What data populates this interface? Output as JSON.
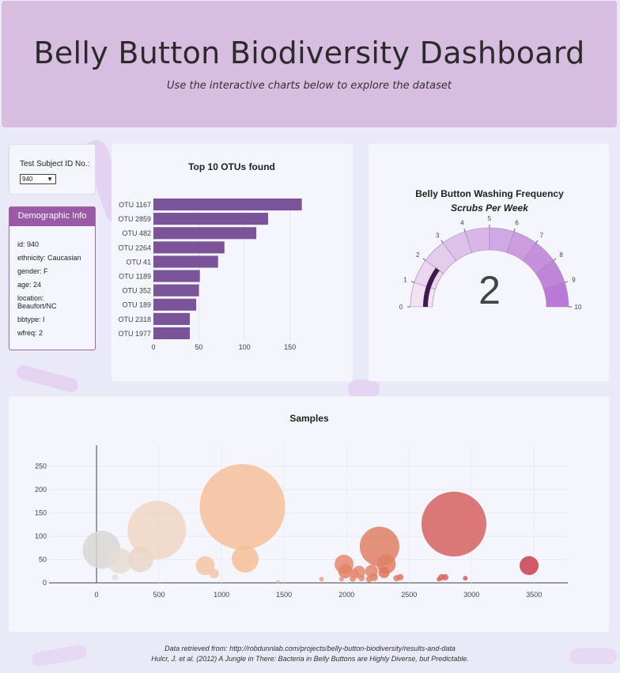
{
  "header": {
    "title": "Belly Button Biodiversity Dashboard",
    "subtitle": "Use the interactive charts below to explore the dataset"
  },
  "selector": {
    "label": "Test Subject ID No.:",
    "value": "940"
  },
  "demographics": {
    "title": "Demographic Info",
    "items": [
      "id: 940",
      "ethnicity: Caucasian",
      "gender: F",
      "age: 24",
      "location: Beaufort/NC",
      "bbtype: I",
      "wfreq: 2"
    ]
  },
  "colors": {
    "bar": "#7a5398",
    "gauge_needle": "#3e1a4f",
    "demo_header": "#9a5aa8"
  },
  "chart_data": [
    {
      "type": "bar",
      "title": "Top 10 OTUs found",
      "orientation": "horizontal",
      "categories": [
        "OTU 1167",
        "OTU 2859",
        "OTU 482",
        "OTU 2264",
        "OTU 41",
        "OTU 1189",
        "OTU 352",
        "OTU 189",
        "OTU 2318",
        "OTU 1977"
      ],
      "values": [
        163,
        126,
        113,
        78,
        71,
        51,
        50,
        47,
        40,
        40
      ],
      "xticks": [
        0,
        50,
        100,
        150
      ],
      "xlim": [
        0,
        172
      ]
    },
    {
      "type": "gauge",
      "title": "Belly Button Washing Frequency",
      "subtitle": "Scrubs Per Week",
      "value": 2,
      "value_label": "2",
      "range": [
        0,
        10
      ],
      "ticks": [
        "0",
        "1",
        "2",
        "3",
        "4",
        "5",
        "6",
        "7",
        "8",
        "9",
        "10"
      ]
    },
    {
      "type": "scatter",
      "title": "Samples",
      "xticks": [
        0,
        500,
        1000,
        1500,
        2000,
        2500,
        3000,
        3500
      ],
      "yticks": [
        0,
        50,
        100,
        150,
        200,
        250
      ],
      "xlim": [
        -380,
        3770
      ],
      "ylim": [
        0,
        295
      ],
      "points": [
        {
          "x": 41,
          "y": 71,
          "r": 24,
          "color": "#d9d6d5"
        },
        {
          "x": 189,
          "y": 47,
          "r": 16,
          "color": "#e8dcd3"
        },
        {
          "x": 352,
          "y": 50,
          "r": 16,
          "color": "#e6d6ca"
        },
        {
          "x": 482,
          "y": 113,
          "r": 37,
          "color": "#f0d6c3"
        },
        {
          "x": 1167,
          "y": 163,
          "r": 54,
          "color": "#f6bf9a"
        },
        {
          "x": 1189,
          "y": 51,
          "r": 17,
          "color": "#f6bd98"
        },
        {
          "x": 870,
          "y": 37,
          "r": 12,
          "color": "#f3c4a4"
        },
        {
          "x": 940,
          "y": 20,
          "r": 6,
          "color": "#f2c5a8"
        },
        {
          "x": 150,
          "y": 12,
          "r": 4,
          "color": "#e6e0dc"
        },
        {
          "x": 1980,
          "y": 40,
          "r": 12,
          "color": "#e58a6e"
        },
        {
          "x": 1990,
          "y": 25,
          "r": 9,
          "color": "#e28466"
        },
        {
          "x": 2060,
          "y": 20,
          "r": 6,
          "color": "#e68d72"
        },
        {
          "x": 2100,
          "y": 23,
          "r": 8,
          "color": "#e48a70"
        },
        {
          "x": 2264,
          "y": 78,
          "r": 25,
          "color": "#e07f64"
        },
        {
          "x": 2318,
          "y": 40,
          "r": 12,
          "color": "#e17e62"
        },
        {
          "x": 2200,
          "y": 25,
          "r": 8,
          "color": "#e3846a"
        },
        {
          "x": 2300,
          "y": 22,
          "r": 7,
          "color": "#e0775c"
        },
        {
          "x": 2220,
          "y": 12,
          "r": 5,
          "color": "#e08066"
        },
        {
          "x": 2180,
          "y": 8,
          "r": 4,
          "color": "#e28569"
        },
        {
          "x": 2120,
          "y": 10,
          "r": 4,
          "color": "#e5896f"
        },
        {
          "x": 2050,
          "y": 9,
          "r": 4,
          "color": "#e68b72"
        },
        {
          "x": 1960,
          "y": 8,
          "r": 3,
          "color": "#e7967c"
        },
        {
          "x": 1800,
          "y": 8,
          "r": 3,
          "color": "#eda588"
        },
        {
          "x": 2400,
          "y": 10,
          "r": 4,
          "color": "#df7a62"
        },
        {
          "x": 2430,
          "y": 12,
          "r": 4,
          "color": "#de775f"
        },
        {
          "x": 2859,
          "y": 126,
          "r": 41,
          "color": "#d5605f"
        },
        {
          "x": 2760,
          "y": 12,
          "r": 4,
          "color": "#d8665f"
        },
        {
          "x": 2790,
          "y": 12,
          "r": 4,
          "color": "#d7645f"
        },
        {
          "x": 2740,
          "y": 8,
          "r": 3,
          "color": "#d9695f"
        },
        {
          "x": 2950,
          "y": 10,
          "r": 3,
          "color": "#d45e5e"
        },
        {
          "x": 3460,
          "y": 37,
          "r": 12,
          "color": "#c9404c"
        },
        {
          "x": 1450,
          "y": 3,
          "r": 2,
          "color": "#f5c2a0"
        }
      ]
    }
  ],
  "footer": {
    "line1": "Data retrieved from: http://robdunnlab.com/projects/belly-button-biodiversity/results-and-data",
    "line2": "Hulcr, J. et al. (2012) A Jungle in There: Bacteria in Belly Buttons are Highly Diverse, but Predictable."
  }
}
